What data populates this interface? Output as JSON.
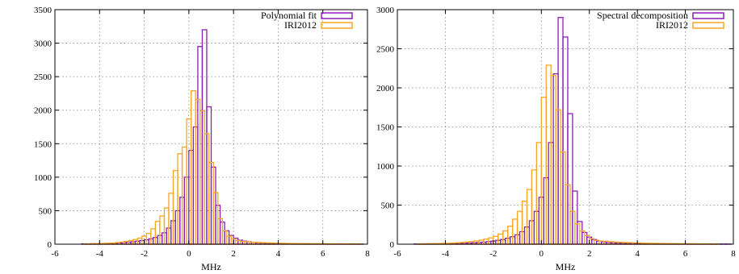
{
  "chart_data": [
    {
      "type": "bar",
      "xlabel": "MHz",
      "ylabel": "",
      "xlim": [
        -6,
        8
      ],
      "ylim": [
        0,
        3500
      ],
      "xticks": [
        "-6",
        "-4",
        "-2",
        "0",
        "2",
        "4",
        "6",
        "8"
      ],
      "yticks": [
        "0",
        "500",
        "1000",
        "1500",
        "2000",
        "2500",
        "3000",
        "3500"
      ],
      "grid": true,
      "legend_position": "top-right",
      "bin_width": 0.2,
      "series": [
        {
          "name": "Polynomial fit",
          "color": "#8B1FB8",
          "x_start": -4.8,
          "values": [
            5,
            5,
            6,
            7,
            8,
            10,
            12,
            15,
            20,
            25,
            30,
            35,
            45,
            55,
            65,
            80,
            100,
            130,
            170,
            240,
            350,
            500,
            700,
            1000,
            1400,
            1750,
            2950,
            3200,
            2050,
            1150,
            580,
            330,
            200,
            130,
            90,
            60,
            45,
            35,
            28,
            22,
            18,
            15,
            12,
            10,
            9,
            8,
            7,
            6,
            5,
            5,
            4,
            4,
            4,
            3,
            3,
            3,
            3,
            2,
            2,
            2,
            2,
            2,
            2
          ]
        },
        {
          "name": "IRI2012",
          "color": "#F5A623",
          "x_start": -4.7,
          "values": [
            5,
            6,
            7,
            9,
            11,
            14,
            18,
            24,
            32,
            42,
            55,
            70,
            90,
            120,
            160,
            230,
            340,
            420,
            540,
            760,
            1100,
            1350,
            1450,
            1870,
            2290,
            2160,
            1990,
            1650,
            1220,
            770,
            380,
            200,
            120,
            80,
            55,
            40,
            38,
            30,
            28,
            25,
            22,
            20,
            18,
            16,
            14,
            12,
            11,
            10,
            9,
            9,
            8,
            7,
            7,
            6,
            6,
            5,
            5,
            4,
            4,
            4,
            3,
            3
          ]
        }
      ]
    },
    {
      "type": "bar",
      "xlabel": "MHz",
      "ylabel": "",
      "xlim": [
        -6,
        8
      ],
      "ylim": [
        0,
        3000
      ],
      "xticks": [
        "-6",
        "-4",
        "-2",
        "0",
        "2",
        "4",
        "6",
        "8"
      ],
      "yticks": [
        "0",
        "500",
        "1000",
        "1500",
        "2000",
        "2500",
        "3000"
      ],
      "grid": true,
      "legend_position": "top-right",
      "bin_width": 0.2,
      "series": [
        {
          "name": "Spectral decomposition",
          "color": "#8B1FB8",
          "x_start": -5.3,
          "values": [
            3,
            3,
            4,
            4,
            5,
            5,
            6,
            7,
            8,
            10,
            12,
            15,
            18,
            22,
            26,
            32,
            40,
            50,
            60,
            75,
            95,
            120,
            160,
            220,
            300,
            420,
            600,
            850,
            1300,
            2180,
            2900,
            2650,
            1670,
            680,
            290,
            150,
            90,
            60,
            40,
            30,
            22,
            18,
            15,
            12,
            10,
            9,
            8,
            7,
            6,
            6,
            5,
            5,
            4,
            4,
            4,
            3,
            3,
            3,
            3,
            2,
            2,
            2,
            2,
            2,
            2,
            2
          ]
        },
        {
          "name": "IRI2012",
          "color": "#F5A623",
          "x_start": -5.2,
          "values": [
            4,
            5,
            6,
            7,
            8,
            10,
            12,
            15,
            18,
            22,
            28,
            35,
            42,
            52,
            65,
            80,
            100,
            130,
            170,
            230,
            320,
            420,
            550,
            700,
            950,
            1300,
            1880,
            2290,
            2160,
            1720,
            1180,
            760,
            420,
            260,
            170,
            110,
            70,
            50,
            40,
            38,
            32,
            28,
            25,
            22,
            20,
            18,
            16,
            14,
            12,
            11,
            10,
            9,
            8,
            7,
            7,
            6,
            6,
            5,
            5,
            4,
            4,
            4,
            3
          ]
        }
      ]
    }
  ]
}
